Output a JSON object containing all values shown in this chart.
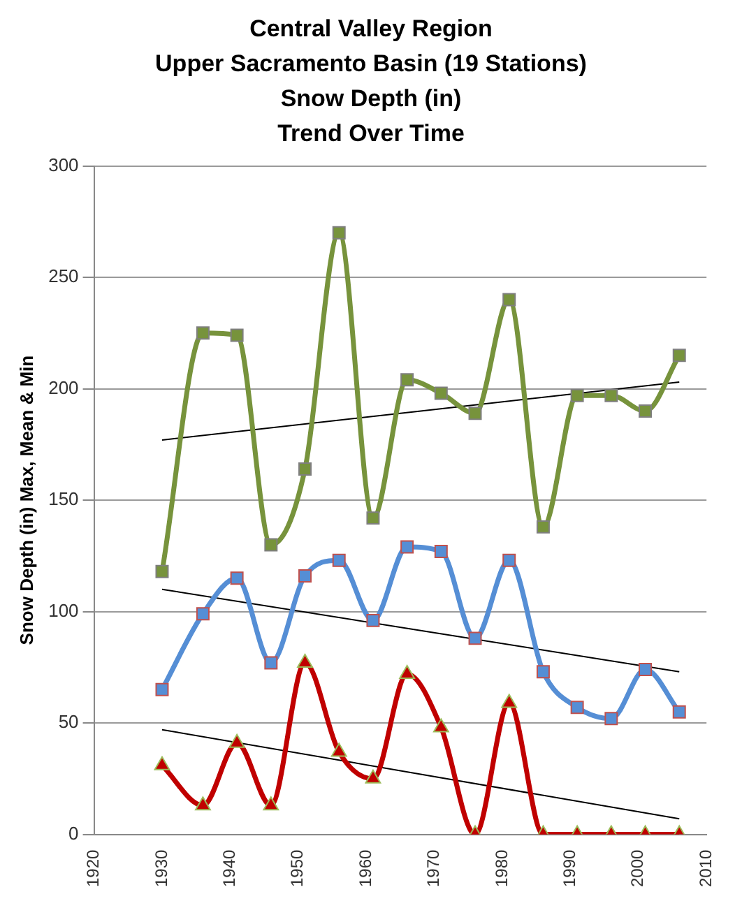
{
  "chart_data": {
    "type": "line",
    "title": "Central Valley Region\nUpper Sacramento Basin (19 Stations)\nSnow Depth (in)\nTrend Over Time",
    "ylabel": "Snow Depth (in) Max, Mean & Min",
    "x": [
      1930,
      1936,
      1941,
      1946,
      1951,
      1956,
      1961,
      1966,
      1971,
      1976,
      1981,
      1986,
      1991,
      1996,
      2001,
      2006
    ],
    "series": [
      {
        "color": "#77933c",
        "marker": "square",
        "values": [
          118,
          225,
          224,
          130,
          164,
          270,
          142,
          204,
          198,
          189,
          240,
          138,
          197,
          197,
          190,
          215
        ]
      },
      {
        "color": "#558ed5",
        "marker": "square",
        "values": [
          65,
          99,
          115,
          77,
          116,
          123,
          96,
          129,
          127,
          88,
          123,
          73,
          57,
          52,
          74,
          55
        ]
      },
      {
        "color": "#c00000",
        "marker": "triangle",
        "values": [
          31,
          13,
          41,
          13,
          77,
          37,
          25,
          72,
          48,
          0,
          59,
          0,
          0,
          0,
          0,
          0
        ]
      },
      {
        "type": "line",
        "color": "#000000",
        "marker": "none",
        "values": [
          177,
          null,
          null,
          null,
          null,
          null,
          null,
          null,
          null,
          null,
          null,
          null,
          null,
          null,
          null,
          203
        ]
      },
      {
        "type": "line",
        "color": "#000000",
        "marker": "none",
        "values": [
          110,
          null,
          null,
          null,
          null,
          null,
          null,
          null,
          null,
          null,
          null,
          null,
          null,
          null,
          null,
          73
        ]
      },
      {
        "type": "line",
        "color": "#000000",
        "marker": "none",
        "values": [
          47,
          null,
          null,
          null,
          null,
          null,
          null,
          null,
          null,
          null,
          null,
          null,
          null,
          null,
          null,
          7
        ]
      }
    ],
    "xlim": [
      1920,
      2010
    ],
    "xticks": [
      1920,
      1930,
      1940,
      1950,
      1960,
      1970,
      1980,
      1990,
      2000,
      2010
    ],
    "ylim": [
      0,
      300
    ],
    "yticks": [
      0,
      50,
      100,
      150,
      200,
      250,
      300
    ],
    "grid": "y",
    "legend": false
  }
}
